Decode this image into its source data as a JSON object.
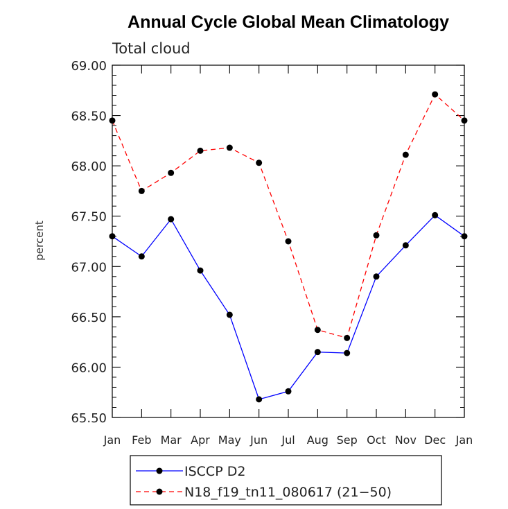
{
  "chart_data": {
    "type": "line",
    "title": "Annual Cycle Global Mean Climatology",
    "subtitle": "Total cloud",
    "xlabel": "",
    "ylabel": "percent",
    "ylim": [
      65.5,
      69.0
    ],
    "y_ticks": [
      "65.50",
      "66.00",
      "66.50",
      "67.00",
      "67.50",
      "68.00",
      "68.50",
      "69.00"
    ],
    "categories": [
      "Jan",
      "Feb",
      "Mar",
      "Apr",
      "May",
      "Jun",
      "Jul",
      "Aug",
      "Sep",
      "Oct",
      "Nov",
      "Dec",
      "Jan"
    ],
    "series": [
      {
        "name": "ISCCP D2",
        "color": "#0000ff",
        "line_style": "solid",
        "marker": "filled-circle",
        "values": [
          67.3,
          67.1,
          67.47,
          66.96,
          66.52,
          65.68,
          65.76,
          66.15,
          66.14,
          66.9,
          67.21,
          67.51,
          67.3
        ]
      },
      {
        "name": "N18_f19_tn11_080617 (21−50)",
        "color": "#ff0000",
        "line_style": "dashed",
        "marker": "filled-circle",
        "values": [
          68.45,
          67.75,
          67.93,
          68.15,
          68.18,
          68.03,
          67.25,
          66.37,
          66.29,
          67.31,
          68.11,
          68.71,
          68.45
        ]
      }
    ],
    "legend_position": "bottom"
  }
}
